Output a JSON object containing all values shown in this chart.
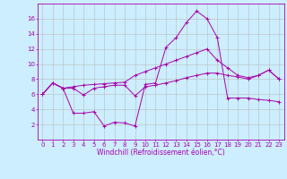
{
  "xlabel": "Windchill (Refroidissement éolien,°C)",
  "bg_color": "#cceeff",
  "line_color": "#aa00aa",
  "grid_color": "#bbbbbb",
  "xlim": [
    -0.5,
    23.5
  ],
  "ylim": [
    0,
    18
  ],
  "xticks": [
    0,
    1,
    2,
    3,
    4,
    5,
    6,
    7,
    8,
    9,
    10,
    11,
    12,
    13,
    14,
    15,
    16,
    17,
    18,
    19,
    20,
    21,
    22,
    23
  ],
  "yticks": [
    2,
    4,
    6,
    8,
    10,
    12,
    14,
    16
  ],
  "series1_x": [
    0,
    1,
    2,
    3,
    4,
    5,
    6,
    7,
    8,
    9,
    10,
    11,
    12,
    13,
    14,
    15,
    16,
    17,
    18,
    19,
    20,
    21,
    22,
    23
  ],
  "series1_y": [
    6.0,
    7.5,
    6.8,
    7.0,
    7.2,
    7.3,
    7.4,
    7.5,
    7.6,
    8.5,
    9.0,
    9.5,
    10.0,
    10.5,
    11.0,
    11.5,
    12.0,
    10.5,
    9.5,
    8.5,
    8.2,
    8.5,
    9.2,
    8.0
  ],
  "series2_x": [
    0,
    1,
    2,
    3,
    4,
    5,
    6,
    7,
    8,
    9,
    10,
    11,
    12,
    13,
    14,
    15,
    16,
    17,
    18,
    19,
    20,
    21,
    22,
    23
  ],
  "series2_y": [
    6.0,
    7.5,
    6.8,
    3.5,
    3.5,
    3.7,
    1.8,
    2.3,
    2.2,
    1.8,
    7.3,
    7.5,
    12.2,
    13.5,
    15.5,
    17.0,
    16.0,
    13.5,
    5.5,
    5.5,
    5.5,
    5.3,
    5.2,
    5.0
  ],
  "series3_x": [
    0,
    1,
    2,
    3,
    4,
    5,
    6,
    7,
    8,
    9,
    10,
    11,
    12,
    13,
    14,
    15,
    16,
    17,
    18,
    19,
    20,
    21,
    22,
    23
  ],
  "series3_y": [
    6.0,
    7.5,
    6.8,
    6.8,
    5.9,
    6.8,
    7.0,
    7.2,
    7.2,
    5.8,
    7.0,
    7.2,
    7.5,
    7.8,
    8.2,
    8.5,
    8.8,
    8.8,
    8.5,
    8.3,
    8.0,
    8.5,
    9.2,
    8.0
  ]
}
